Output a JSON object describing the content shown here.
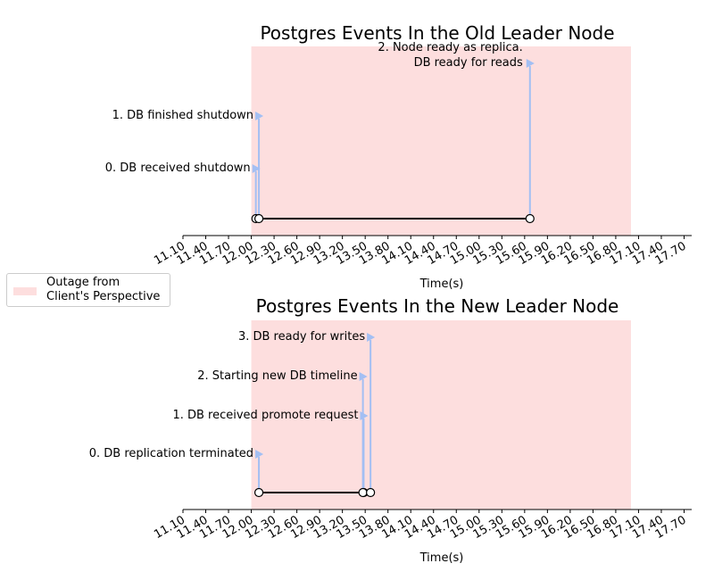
{
  "chart_data": [
    {
      "type": "timeline",
      "title": "Postgres Events In the Old Leader Node",
      "xlabel": "Time(s)",
      "xlim": [
        11.1,
        17.8
      ],
      "x_ticks": [
        "11.10",
        "11.40",
        "11.70",
        "12.00",
        "12.30",
        "12.60",
        "12.90",
        "13.20",
        "13.50",
        "13.80",
        "14.10",
        "14.40",
        "14.70",
        "15.00",
        "15.30",
        "15.60",
        "15.90",
        "16.20",
        "16.50",
        "16.80",
        "17.10",
        "17.40",
        "17.70"
      ],
      "outage": [
        12.0,
        17.0
      ],
      "events": [
        {
          "label": "0. DB received shutdown",
          "x": 12.06
        },
        {
          "label": "1. DB finished shutdown",
          "x": 12.1
        },
        {
          "label": "2. Node ready as replica.\nDB ready for reads",
          "x": 15.67
        }
      ]
    },
    {
      "type": "timeline",
      "title": "Postgres Events In the New Leader Node",
      "xlabel": "Time(s)",
      "xlim": [
        11.1,
        17.8
      ],
      "x_ticks": [
        "11.10",
        "11.40",
        "11.70",
        "12.00",
        "12.30",
        "12.60",
        "12.90",
        "13.20",
        "13.50",
        "13.80",
        "14.10",
        "14.40",
        "14.70",
        "15.00",
        "15.30",
        "15.60",
        "15.90",
        "16.20",
        "16.50",
        "16.80",
        "17.10",
        "17.40",
        "17.70"
      ],
      "outage": [
        12.0,
        17.0
      ],
      "events": [
        {
          "label": "0. DB replication terminated",
          "x": 12.1
        },
        {
          "label": "1. DB received promote request",
          "x": 13.48
        },
        {
          "label": "2. Starting new DB timeline",
          "x": 13.47
        },
        {
          "label": "3. DB ready for writes",
          "x": 13.57
        }
      ]
    }
  ],
  "legend": {
    "label": "Outage from\nClient's Perspective",
    "placement": "left-center"
  },
  "colors": {
    "outage": "#fddede",
    "stem": "#a3bff3",
    "baseline": "#000000"
  }
}
